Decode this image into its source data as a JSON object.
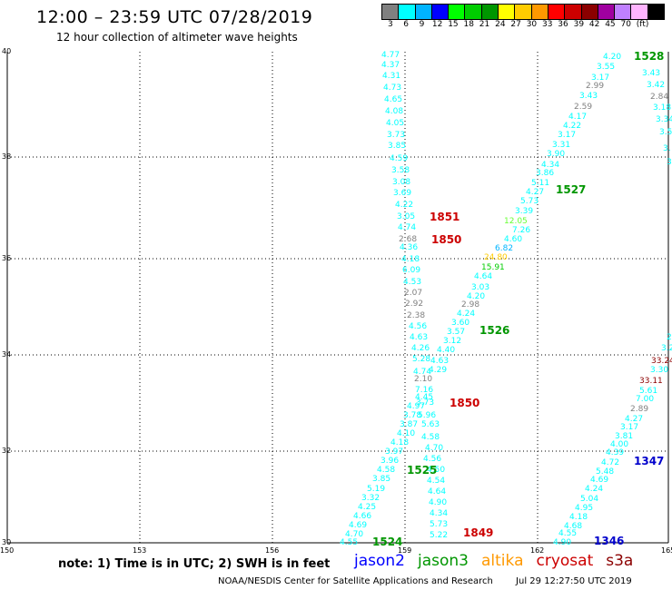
{
  "title": "12:00 – 23:59 UTC 07/28/2019",
  "subtitle": "12 hour collection of altimeter wave heights",
  "colorbar": {
    "colors": [
      "#808080",
      "#00ffff",
      "#00b4ff",
      "#0000ff",
      "#00ff00",
      "#00cd00",
      "#009600",
      "#ffff00",
      "#ffcc00",
      "#ff9900",
      "#ff0000",
      "#cc0000",
      "#8b0000",
      "#a000a0",
      "#c080ff",
      "#ffb4ff",
      "#000000"
    ],
    "labels": [
      "3",
      "6",
      "9",
      "12",
      "15",
      "18",
      "21",
      "24",
      "27",
      "30",
      "33",
      "36",
      "39",
      "42",
      "45",
      "70",
      "(ft)"
    ]
  },
  "axes": {
    "lon_labels": [
      "150",
      "153",
      "156",
      "159",
      "162",
      "165"
    ],
    "lat_labels": [
      "30",
      "32",
      "34",
      "36",
      "38",
      "40"
    ]
  },
  "heights": [
    {
      "text": "4.77",
      "color": "#00ffff"
    },
    {
      "text": "4.37",
      "color": "#00ffff"
    },
    {
      "text": "4.31",
      "color": "#00ffff"
    },
    {
      "text": "4.73",
      "color": "#00ffff"
    },
    {
      "text": "4.65",
      "color": "#00ffff"
    },
    {
      "text": "4.08",
      "color": "#00ffff"
    },
    {
      "text": "4.05",
      "color": "#00ffff"
    },
    {
      "text": "3.73",
      "color": "#00ffff"
    },
    {
      "text": "3.85",
      "color": "#00ffff"
    },
    {
      "text": "4.59",
      "color": "#00ffff"
    },
    {
      "text": "3.58",
      "color": "#00ffff"
    },
    {
      "text": "3.08",
      "color": "#00ffff"
    },
    {
      "text": "3.69",
      "color": "#00ffff"
    },
    {
      "text": "4.22",
      "color": "#00ffff"
    },
    {
      "text": "3.05",
      "color": "#00ffff"
    },
    {
      "text": "4.74",
      "color": "#00ffff"
    },
    {
      "text": "2.68",
      "color": "#808080"
    },
    {
      "text": "4.36",
      "color": "#00ffff"
    },
    {
      "text": "4.18",
      "color": "#00ffff"
    },
    {
      "text": "6.09",
      "color": "#00ffff"
    },
    {
      "text": "4.53",
      "color": "#00ffff"
    },
    {
      "text": "2.07",
      "color": "#808080"
    },
    {
      "text": "2.92",
      "color": "#808080"
    },
    {
      "text": "2.38",
      "color": "#808080"
    },
    {
      "text": "4.56",
      "color": "#00ffff"
    },
    {
      "text": "4.63",
      "color": "#00ffff"
    },
    {
      "text": "4.26",
      "color": "#00ffff"
    },
    {
      "text": "5.28",
      "color": "#00ffff"
    },
    {
      "text": "4.74",
      "color": "#00ffff"
    },
    {
      "text": "2.10",
      "color": "#808080"
    },
    {
      "text": "7.16",
      "color": "#00ffff"
    },
    {
      "text": "4.45",
      "color": "#00ffff"
    },
    {
      "text": "4.97",
      "color": "#00ffff"
    },
    {
      "text": "3.73",
      "color": "#00ffff"
    },
    {
      "text": "3.78",
      "color": "#00ffff"
    },
    {
      "text": "5.96",
      "color": "#00ffff"
    },
    {
      "text": "3.87",
      "color": "#00ffff"
    },
    {
      "text": "5.63",
      "color": "#00ffff"
    },
    {
      "text": "4.10",
      "color": "#00ffff"
    },
    {
      "text": "4.58",
      "color": "#00ffff"
    },
    {
      "text": "4.18",
      "color": "#00ffff"
    },
    {
      "text": "4.70",
      "color": "#00ffff"
    },
    {
      "text": "3.97",
      "color": "#00ffff"
    },
    {
      "text": "4.56",
      "color": "#00ffff"
    },
    {
      "text": "3.96",
      "color": "#00ffff"
    },
    {
      "text": "4.50",
      "color": "#00ffff"
    },
    {
      "text": "4.58",
      "color": "#00ffff"
    },
    {
      "text": "4.54",
      "color": "#00ffff"
    },
    {
      "text": "3.85",
      "color": "#00ffff"
    },
    {
      "text": "4.64",
      "color": "#00ffff"
    },
    {
      "text": "5.19",
      "color": "#00ffff"
    },
    {
      "text": "4.90",
      "color": "#00ffff"
    },
    {
      "text": "3.32",
      "color": "#00ffff"
    },
    {
      "text": "4.34",
      "color": "#00ffff"
    },
    {
      "text": "4.25",
      "color": "#00ffff"
    },
    {
      "text": "5.73",
      "color": "#00ffff"
    },
    {
      "text": "4.66",
      "color": "#00ffff"
    },
    {
      "text": "5.22",
      "color": "#00ffff"
    },
    {
      "text": "4.69",
      "color": "#00ffff"
    },
    {
      "text": "4.70",
      "color": "#00ffff"
    },
    {
      "text": "4.55",
      "color": "#00ffff"
    },
    {
      "text": "4.20",
      "color": "#00ffff"
    },
    {
      "text": "3.55",
      "color": "#00ffff"
    },
    {
      "text": "3.17",
      "color": "#00ffff"
    },
    {
      "text": "2.99",
      "color": "#808080"
    },
    {
      "text": "3.43",
      "color": "#00ffff"
    },
    {
      "text": "2.59",
      "color": "#808080"
    },
    {
      "text": "4.17",
      "color": "#00ffff"
    },
    {
      "text": "4.22",
      "color": "#00ffff"
    },
    {
      "text": "3.17",
      "color": "#00ffff"
    },
    {
      "text": "3.31",
      "color": "#00ffff"
    },
    {
      "text": "3.90",
      "color": "#00ffff"
    },
    {
      "text": "4.34",
      "color": "#00ffff"
    },
    {
      "text": "3.86",
      "color": "#00ffff"
    },
    {
      "text": "5.11",
      "color": "#00ffff"
    },
    {
      "text": "4.27",
      "color": "#00ffff"
    },
    {
      "text": "5.73",
      "color": "#00ffff"
    },
    {
      "text": "3.39",
      "color": "#00ffff"
    },
    {
      "text": "12.05",
      "color": "#66ff33"
    },
    {
      "text": "7.26",
      "color": "#00ffff"
    },
    {
      "text": "4.60",
      "color": "#00ffff"
    },
    {
      "text": "6.82",
      "color": "#00b4ff"
    },
    {
      "text": "24.80",
      "color": "#ffcc00"
    },
    {
      "text": "15.91",
      "color": "#00cd00"
    },
    {
      "text": "4.64",
      "color": "#00ffff"
    },
    {
      "text": "3.03",
      "color": "#00ffff"
    },
    {
      "text": "4.20",
      "color": "#00ffff"
    },
    {
      "text": "2.98",
      "color": "#808080"
    },
    {
      "text": "4.24",
      "color": "#00ffff"
    },
    {
      "text": "3.60",
      "color": "#00ffff"
    },
    {
      "text": "3.57",
      "color": "#00ffff"
    },
    {
      "text": "3.12",
      "color": "#00ffff"
    },
    {
      "text": "4.40",
      "color": "#00ffff"
    },
    {
      "text": "4.63",
      "color": "#00ffff"
    },
    {
      "text": "4.29",
      "color": "#00ffff"
    },
    {
      "text": "3.43",
      "color": "#00ffff"
    },
    {
      "text": "3.42",
      "color": "#00ffff"
    },
    {
      "text": "2.84",
      "color": "#808080"
    },
    {
      "text": "3.18",
      "color": "#00ffff"
    },
    {
      "text": "3.34",
      "color": "#00ffff"
    },
    {
      "text": "3.5",
      "color": "#00ffff"
    },
    {
      "text": "3.",
      "color": "#00ffff"
    },
    {
      "text": "3",
      "color": "#00ffff"
    },
    {
      "text": "2",
      "color": "#00ffff"
    },
    {
      "text": "3.2",
      "color": "#00ffff"
    },
    {
      "text": "33.24",
      "color": "#8b0000"
    },
    {
      "text": "3.30",
      "color": "#00ffff"
    },
    {
      "text": "33.11",
      "color": "#8b0000"
    },
    {
      "text": "5.61",
      "color": "#00ffff"
    },
    {
      "text": "7.00",
      "color": "#00ffff"
    },
    {
      "text": "2.89",
      "color": "#808080"
    },
    {
      "text": "4.27",
      "color": "#00ffff"
    },
    {
      "text": "3.17",
      "color": "#00ffff"
    },
    {
      "text": "3.81",
      "color": "#00ffff"
    },
    {
      "text": "4.00",
      "color": "#00ffff"
    },
    {
      "text": "4.39",
      "color": "#00ffff"
    },
    {
      "text": "4.72",
      "color": "#00ffff"
    },
    {
      "text": "5.48",
      "color": "#00ffff"
    },
    {
      "text": "4.69",
      "color": "#00ffff"
    },
    {
      "text": "4.24",
      "color": "#00ffff"
    },
    {
      "text": "5.04",
      "color": "#00ffff"
    },
    {
      "text": "4.95",
      "color": "#00ffff"
    },
    {
      "text": "4.18",
      "color": "#00ffff"
    },
    {
      "text": "4.68",
      "color": "#00ffff"
    },
    {
      "text": "4.55",
      "color": "#00ffff"
    },
    {
      "text": "4.90",
      "color": "#00ffff"
    }
  ],
  "time_labels": [
    {
      "text": "1528",
      "color": "#009600"
    },
    {
      "text": "1527",
      "color": "#009600"
    },
    {
      "text": "1851",
      "color": "#cc0000"
    },
    {
      "text": "1850",
      "color": "#cc0000"
    },
    {
      "text": "1526",
      "color": "#009600"
    },
    {
      "text": "1850",
      "color": "#cc0000"
    },
    {
      "text": "1525",
      "color": "#009600"
    },
    {
      "text": "1524",
      "color": "#009600"
    },
    {
      "text": "1849",
      "color": "#cc0000"
    },
    {
      "text": "1347",
      "color": "#0000cc"
    },
    {
      "text": "1346",
      "color": "#0000cc"
    }
  ],
  "note": "note:  1) Time is in UTC;  2) SWH is in feet",
  "satellites": [
    {
      "name": "jason2",
      "color": "#0000ff"
    },
    {
      "name": "jason3",
      "color": "#009600"
    },
    {
      "name": "altika",
      "color": "#ff9900"
    },
    {
      "name": "cryosat",
      "color": "#cc0000"
    },
    {
      "name": "s3a",
      "color": "#8b0000"
    }
  ],
  "footer": {
    "credit": "NOAA/NESDIS Center for Satellite Applications and Research",
    "timestamp": "Jul 29 12:27:50 UTC 2019"
  }
}
